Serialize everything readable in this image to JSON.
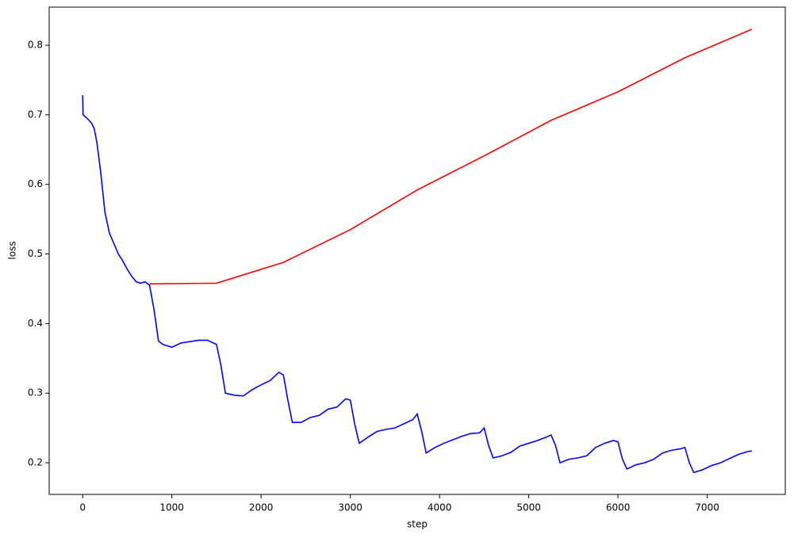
{
  "chart_data": {
    "type": "line",
    "xlabel": "step",
    "ylabel": "loss",
    "xlim": [
      -375,
      7875
    ],
    "ylim": [
      0.1545,
      0.8547
    ],
    "xticks": [
      0,
      1000,
      2000,
      3000,
      4000,
      5000,
      6000,
      7000
    ],
    "yticks": [
      0.2,
      0.3,
      0.4,
      0.5,
      0.6,
      0.7,
      0.8
    ],
    "series": [
      {
        "color": "#0000ff",
        "x": [
          0,
          5,
          50,
          100,
          130,
          160,
          200,
          250,
          300,
          350,
          400,
          450,
          500,
          550,
          600,
          650,
          700,
          750,
          800,
          850,
          900,
          1000,
          1100,
          1200,
          1300,
          1400,
          1500,
          1550,
          1600,
          1700,
          1800,
          1900,
          2000,
          2100,
          2200,
          2250,
          2300,
          2350,
          2450,
          2550,
          2650,
          2750,
          2850,
          2950,
          3000,
          3050,
          3100,
          3200,
          3300,
          3400,
          3500,
          3600,
          3700,
          3750,
          3800,
          3850,
          3950,
          4050,
          4150,
          4250,
          4350,
          4450,
          4500,
          4550,
          4600,
          4700,
          4800,
          4900,
          5000,
          5100,
          5200,
          5250,
          5300,
          5350,
          5450,
          5550,
          5650,
          5750,
          5850,
          5950,
          6000,
          6050,
          6100,
          6200,
          6300,
          6400,
          6500,
          6600,
          6700,
          6750,
          6800,
          6850,
          6950,
          7050,
          7150,
          7250,
          7350,
          7450,
          7500
        ],
        "values": [
          0.728,
          0.7,
          0.695,
          0.688,
          0.68,
          0.66,
          0.62,
          0.56,
          0.53,
          0.515,
          0.5,
          0.49,
          0.478,
          0.468,
          0.46,
          0.458,
          0.46,
          0.455,
          0.42,
          0.375,
          0.37,
          0.366,
          0.372,
          0.374,
          0.376,
          0.376,
          0.37,
          0.34,
          0.3,
          0.297,
          0.296,
          0.305,
          0.312,
          0.318,
          0.33,
          0.326,
          0.29,
          0.258,
          0.258,
          0.265,
          0.268,
          0.277,
          0.28,
          0.292,
          0.29,
          0.255,
          0.228,
          0.237,
          0.245,
          0.248,
          0.25,
          0.256,
          0.262,
          0.27,
          0.245,
          0.214,
          0.222,
          0.228,
          0.233,
          0.238,
          0.242,
          0.243,
          0.25,
          0.225,
          0.207,
          0.21,
          0.215,
          0.224,
          0.228,
          0.232,
          0.237,
          0.24,
          0.225,
          0.2,
          0.205,
          0.207,
          0.21,
          0.222,
          0.228,
          0.232,
          0.23,
          0.205,
          0.191,
          0.197,
          0.2,
          0.205,
          0.214,
          0.218,
          0.22,
          0.222,
          0.2,
          0.186,
          0.19,
          0.196,
          0.2,
          0.206,
          0.212,
          0.216,
          0.217
        ]
      },
      {
        "color": "#ff0000",
        "x": [
          750,
          1500,
          2250,
          3000,
          3750,
          4500,
          5250,
          6000,
          6750,
          7500
        ],
        "values": [
          0.457,
          0.458,
          0.488,
          0.535,
          0.592,
          0.641,
          0.692,
          0.733,
          0.782,
          0.823
        ]
      }
    ]
  }
}
